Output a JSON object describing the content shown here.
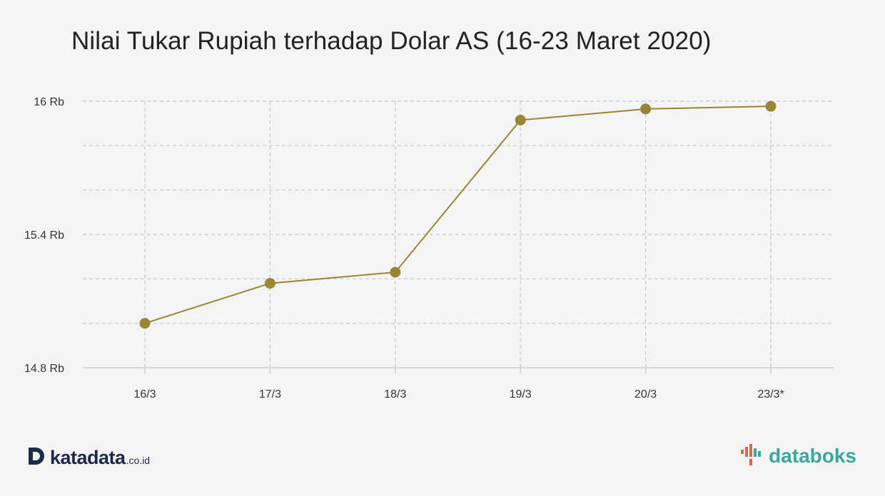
{
  "chart_data": {
    "type": "line",
    "title": "Nilai Tukar Rupiah terhadap Dolar AS (16-23 Maret 2020)",
    "categories": [
      "16/3",
      "17/3",
      "18/3",
      "19/3",
      "20/3",
      "23/3*"
    ],
    "series": [
      {
        "values": [
          15000,
          15180,
          15230,
          15915,
          15965,
          15977
        ]
      }
    ],
    "y_ticks": [
      {
        "value": 16000,
        "label": "16 Rb"
      },
      {
        "value": 15400,
        "label": "15.4 Rb"
      },
      {
        "value": 14800,
        "label": "14.8 Rb"
      }
    ],
    "ylim": [
      14800,
      16000
    ],
    "grid_step": 200,
    "grid": true,
    "colors": {
      "line": "#9a8535",
      "marker": "#9a8535",
      "grid": "#c8c8c8",
      "axis": "#cfcfcf"
    }
  },
  "branding": {
    "left_logo_text": "katadata",
    "left_logo_suffix": ".co.id",
    "left_logo_icon": "katadata-d-icon",
    "right_logo_text": "databoks",
    "right_logo_icon": "databoks-bars-icon"
  }
}
